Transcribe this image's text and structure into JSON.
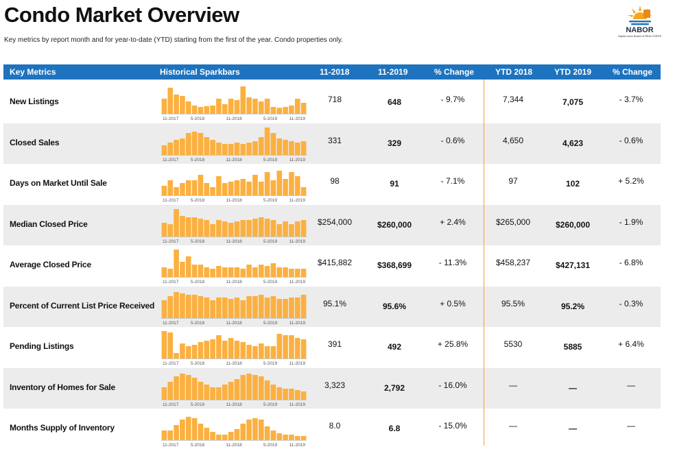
{
  "header": {
    "title": "Condo Market Overview",
    "subtitle": "Key metrics by report month and for year-to-date (YTD) starting from the first of the year. Condo properties only."
  },
  "logo": {
    "name": "NABOR",
    "tagline": "Naples Area Board of REALTORS®",
    "colors": {
      "sun": "#f5a623",
      "water": "#1e73be"
    }
  },
  "table": {
    "columns": [
      "Key Metrics",
      "Historical Sparkbars",
      "11-2018",
      "11-2019",
      "% Change",
      "YTD 2018",
      "YTD 2019",
      "% Change"
    ],
    "spark_axis_labels": [
      "11-2017",
      "5-2018",
      "11-2018",
      "5-2019",
      "11-2019"
    ],
    "colors": {
      "header_bg": "#1e73be",
      "bar": "#fbb040",
      "divider": "#f0a030",
      "row_shade": "#ececec"
    },
    "rows": [
      {
        "label": "New Listings",
        "v11_2018": "718",
        "v11_2019": "648",
        "change": "- 9.7%",
        "ytd2018": "7,344",
        "ytd2019": "7,075",
        "ytd_change": "- 3.7%",
        "spark": [
          0.55,
          0.95,
          0.7,
          0.65,
          0.45,
          0.3,
          0.25,
          0.28,
          0.3,
          0.55,
          0.35,
          0.55,
          0.5,
          1.0,
          0.6,
          0.55,
          0.45,
          0.55,
          0.25,
          0.22,
          0.25,
          0.3,
          0.55,
          0.4
        ]
      },
      {
        "label": "Closed Sales",
        "v11_2018": "331",
        "v11_2019": "329",
        "change": "- 0.6%",
        "ytd2018": "4,650",
        "ytd2019": "4,623",
        "ytd_change": "- 0.6%",
        "spark": [
          0.35,
          0.45,
          0.55,
          0.6,
          0.8,
          0.85,
          0.8,
          0.65,
          0.55,
          0.45,
          0.4,
          0.4,
          0.45,
          0.4,
          0.45,
          0.5,
          0.65,
          1.0,
          0.8,
          0.6,
          0.55,
          0.5,
          0.45,
          0.5
        ]
      },
      {
        "label": "Days on Market Until Sale",
        "v11_2018": "98",
        "v11_2019": "91",
        "change": "- 7.1%",
        "ytd2018": "97",
        "ytd2019": "102",
        "ytd_change": "+ 5.2%",
        "spark": [
          0.35,
          0.55,
          0.3,
          0.45,
          0.55,
          0.55,
          0.75,
          0.45,
          0.3,
          0.7,
          0.45,
          0.5,
          0.55,
          0.6,
          0.5,
          0.75,
          0.5,
          0.85,
          0.55,
          0.9,
          0.6,
          0.85,
          0.7,
          0.3
        ]
      },
      {
        "label": "Median Closed Price",
        "v11_2018": "$254,000",
        "v11_2019": "$260,000",
        "change": "+ 2.4%",
        "ytd2018": "$265,000",
        "ytd2019": "$260,000",
        "ytd_change": "- 1.9%",
        "spark": [
          0.5,
          0.45,
          1.0,
          0.75,
          0.7,
          0.7,
          0.65,
          0.6,
          0.45,
          0.6,
          0.55,
          0.5,
          0.55,
          0.6,
          0.6,
          0.65,
          0.7,
          0.65,
          0.6,
          0.45,
          0.55,
          0.45,
          0.55,
          0.6
        ]
      },
      {
        "label": "Average Closed Price",
        "v11_2018": "$415,882",
        "v11_2019": "$368,699",
        "change": "- 11.3%",
        "ytd2018": "$458,237",
        "ytd2019": "$427,131",
        "ytd_change": "- 6.8%",
        "spark": [
          0.35,
          0.3,
          1.0,
          0.55,
          0.75,
          0.45,
          0.45,
          0.35,
          0.3,
          0.4,
          0.35,
          0.35,
          0.35,
          0.3,
          0.45,
          0.35,
          0.45,
          0.4,
          0.5,
          0.35,
          0.35,
          0.3,
          0.3,
          0.3
        ]
      },
      {
        "label": "Percent of Current List Price Received",
        "v11_2018": "95.1%",
        "v11_2019": "95.6%",
        "change": "+ 0.5%",
        "ytd2018": "95.5%",
        "ytd2019": "95.2%",
        "ytd_change": "- 0.3%",
        "spark": [
          0.65,
          0.8,
          0.95,
          0.9,
          0.85,
          0.85,
          0.8,
          0.75,
          0.65,
          0.75,
          0.75,
          0.7,
          0.75,
          0.65,
          0.8,
          0.8,
          0.85,
          0.75,
          0.8,
          0.7,
          0.7,
          0.75,
          0.75,
          0.85
        ]
      },
      {
        "label": "Pending Listings",
        "v11_2018": "391",
        "v11_2019": "492",
        "change": "+ 25.8%",
        "ytd2018": "5530",
        "ytd2019": "5885",
        "ytd_change": "+ 6.4%",
        "spark": [
          1.0,
          0.95,
          0.2,
          0.55,
          0.45,
          0.5,
          0.6,
          0.65,
          0.7,
          0.85,
          0.65,
          0.75,
          0.65,
          0.6,
          0.5,
          0.45,
          0.55,
          0.45,
          0.45,
          0.9,
          0.85,
          0.85,
          0.75,
          0.7
        ]
      },
      {
        "label": "Inventory of Homes for Sale",
        "v11_2018": "3,323",
        "v11_2019": "2,792",
        "change": "- 16.0%",
        "ytd2018": "—",
        "ytd2019": "—",
        "ytd_change": "—",
        "spark": [
          0.45,
          0.65,
          0.85,
          0.95,
          0.9,
          0.8,
          0.65,
          0.55,
          0.45,
          0.45,
          0.55,
          0.65,
          0.75,
          0.9,
          0.95,
          0.9,
          0.85,
          0.7,
          0.55,
          0.45,
          0.4,
          0.4,
          0.35,
          0.3
        ]
      },
      {
        "label": "Months Supply of Inventory",
        "v11_2018": "8.0",
        "v11_2019": "6.8",
        "change": "- 15.0%",
        "ytd2018": "—",
        "ytd2019": "—",
        "ytd_change": "—",
        "spark": [
          0.35,
          0.35,
          0.55,
          0.75,
          0.85,
          0.8,
          0.6,
          0.45,
          0.3,
          0.2,
          0.2,
          0.3,
          0.4,
          0.6,
          0.75,
          0.8,
          0.75,
          0.5,
          0.35,
          0.25,
          0.2,
          0.2,
          0.15,
          0.15
        ]
      }
    ]
  }
}
